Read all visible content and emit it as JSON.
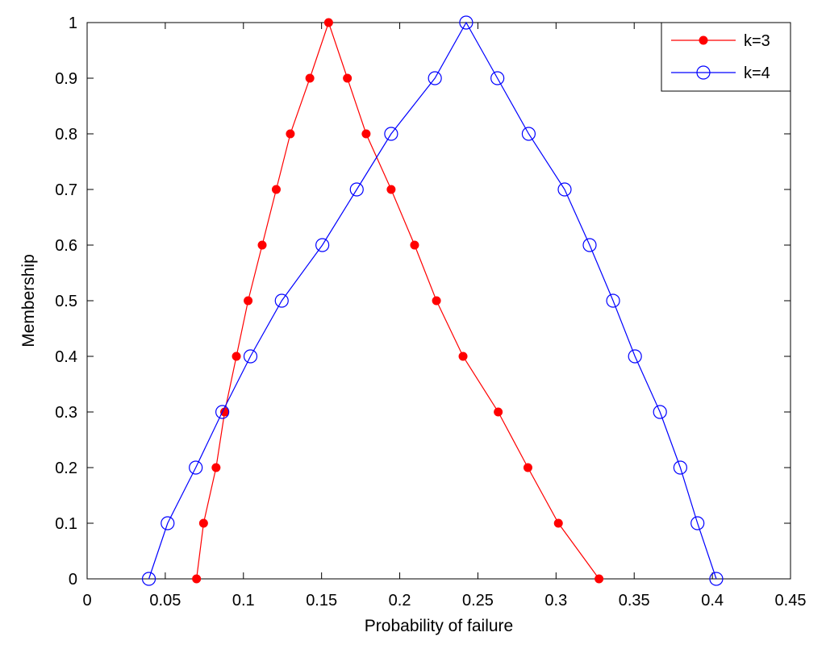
{
  "chart_data": {
    "type": "line",
    "title": "",
    "xlabel": "Probability of failure",
    "ylabel": "Membership",
    "xlim": [
      0,
      0.45
    ],
    "ylim": [
      0,
      1
    ],
    "xticks": [
      0,
      0.05,
      0.1,
      0.15,
      0.2,
      0.25,
      0.3,
      0.35,
      0.4,
      0.45
    ],
    "xtick_labels": [
      "0",
      "0.05",
      "0.1",
      "0.15",
      "0.2",
      "0.25",
      "0.3",
      "0.35",
      "0.4",
      "0.45"
    ],
    "yticks": [
      0,
      0.1,
      0.2,
      0.3,
      0.4,
      0.5,
      0.6,
      0.7,
      0.8,
      0.9,
      1
    ],
    "ytick_labels": [
      "0",
      "0.1",
      "0.2",
      "0.3",
      "0.4",
      "0.5",
      "0.6",
      "0.7",
      "0.8",
      "0.9",
      "1"
    ],
    "grid": false,
    "legend_position": "top-right",
    "series": [
      {
        "name": "k=3",
        "color": "#ff0000",
        "marker": "filled-circle",
        "x": [
          0.07,
          0.0745,
          0.0825,
          0.088,
          0.0955,
          0.103,
          0.112,
          0.121,
          0.13,
          0.1425,
          0.1545,
          0.1665,
          0.1785,
          0.1945,
          0.2095,
          0.2235,
          0.2405,
          0.263,
          0.282,
          0.3015,
          0.3275
        ],
        "y": [
          0,
          0.1,
          0.2,
          0.3,
          0.4,
          0.5,
          0.6,
          0.7,
          0.8,
          0.9,
          1,
          0.9,
          0.8,
          0.7,
          0.6,
          0.5,
          0.4,
          0.3,
          0.2,
          0.1,
          0
        ]
      },
      {
        "name": "k=4",
        "color": "#0000ff",
        "marker": "open-circle",
        "x": [
          0.0395,
          0.0515,
          0.0695,
          0.0865,
          0.1045,
          0.1245,
          0.1505,
          0.1725,
          0.1945,
          0.2225,
          0.2425,
          0.2625,
          0.2825,
          0.3055,
          0.3215,
          0.3365,
          0.3505,
          0.3665,
          0.3795,
          0.3905,
          0.4025
        ],
        "y": [
          0,
          0.1,
          0.2,
          0.3,
          0.4,
          0.5,
          0.6,
          0.7,
          0.8,
          0.9,
          1,
          0.9,
          0.8,
          0.7,
          0.6,
          0.5,
          0.4,
          0.3,
          0.2,
          0.1,
          0
        ]
      }
    ]
  }
}
